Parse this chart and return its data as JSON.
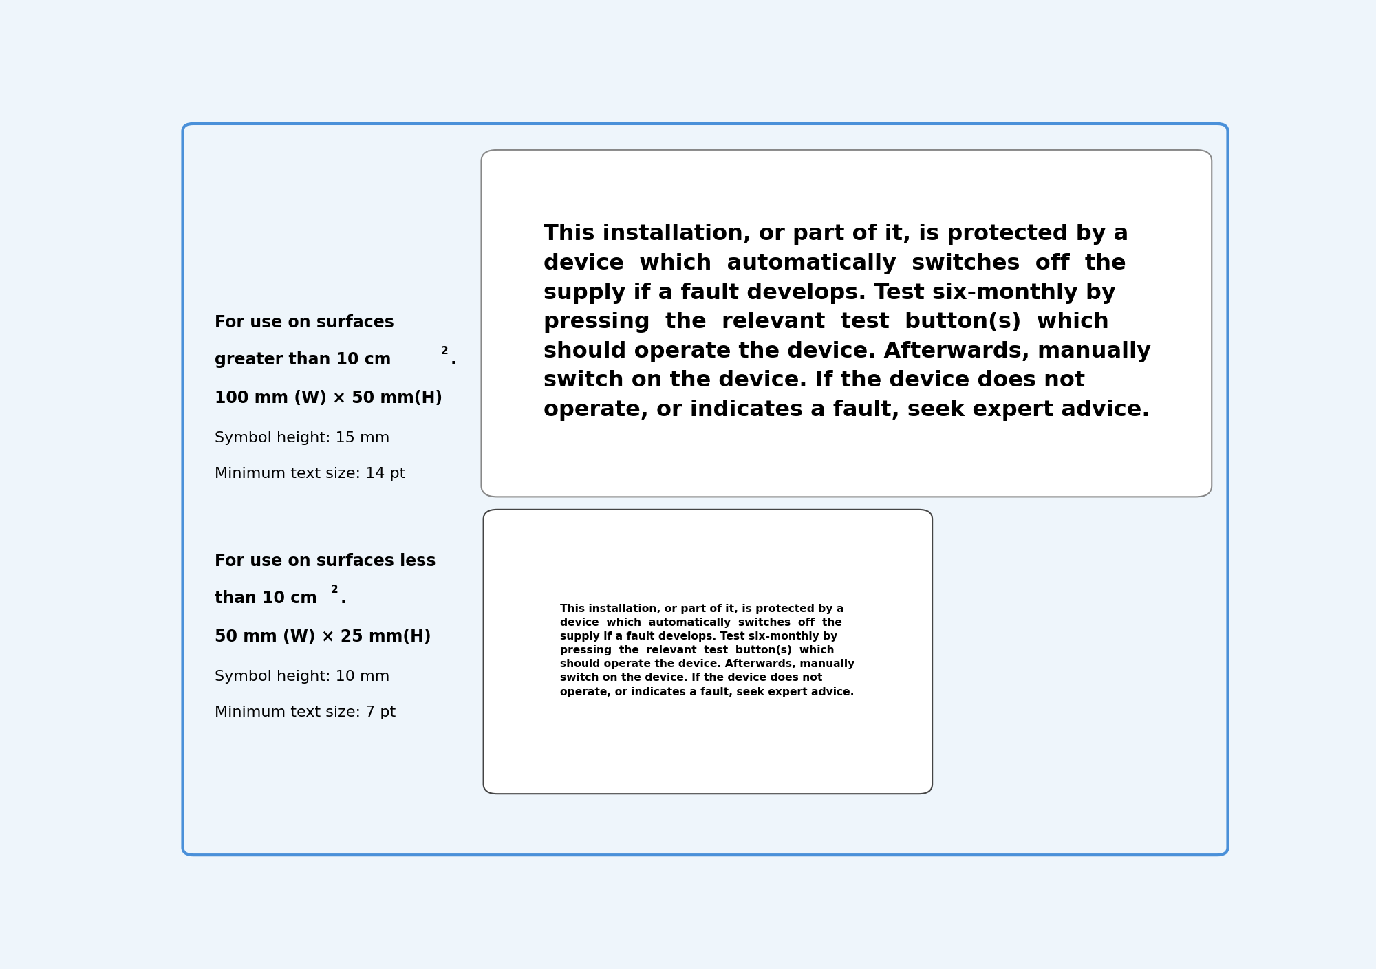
{
  "bg_color": "#eef5fb",
  "outer_border_color": "#4a90d9",
  "outer_border_lw": 3,
  "box1_border_color": "#888888",
  "box2_border_color": "#444444",
  "text_color": "#000000",
  "s1_line1": "For use on surfaces",
  "s1_line2": "greater than 10 cm",
  "s1_line3": "100 mm (W) × 50 mm(H)",
  "s1_line4": "Symbol height: 15 mm",
  "s1_line5": "Minimum text size: 14 pt",
  "s2_line1": "For use on surfaces less",
  "s2_line2": "than 10 cm",
  "s2_line3": "50 mm (W) × 25 mm(H)",
  "s2_line4": "Symbol height: 10 mm",
  "s2_line5": "Minimum text size: 7 pt",
  "big_text_line1": "This installation, or part of it, is protected by a",
  "big_text_line2": "device  which  automatically  switches  off  the",
  "big_text_line3": "supply if a fault develops. Test six-monthly by",
  "big_text_line4": "pressing  the  relevant  test  button(s)  which",
  "big_text_line5": "should operate the device. Afterwards, manually",
  "big_text_line6": "switch on the device. If the device does not",
  "big_text_line7": "operate, or indicates a fault, seek expert advice.",
  "small_text_line1": "This installation, or part of it, is protected by a",
  "small_text_line2": "device  which  automatically  switches  off  the",
  "small_text_line3": "supply if a fault develops. Test six-monthly by",
  "small_text_line4": "pressing  the  relevant  test  button(s)  which",
  "small_text_line5": "should operate the device. Afterwards, manually",
  "small_text_line6": "switch on the device. If the device does not",
  "small_text_line7": "operate, or indicates a fault, seek expert advice."
}
